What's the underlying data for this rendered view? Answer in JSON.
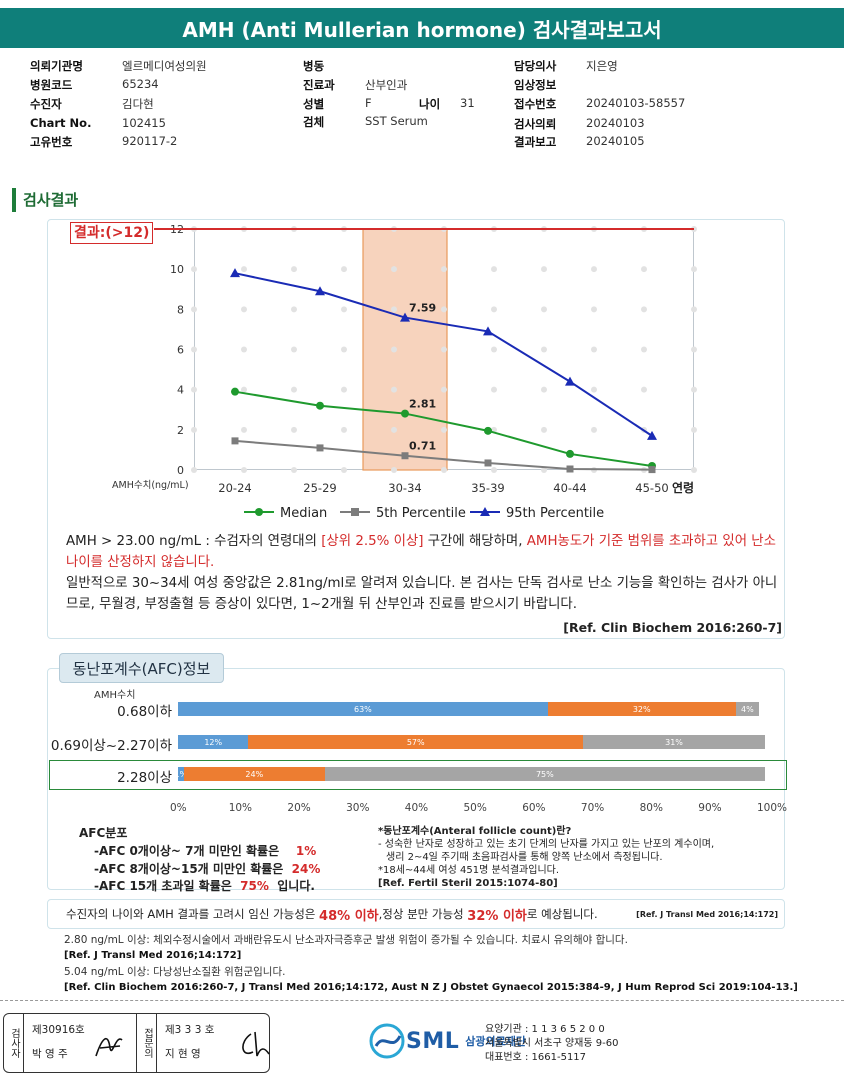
{
  "title": "AMH (Anti Mullerian hormone) 검사결과보고서",
  "info": {
    "col1": [
      {
        "label": "의뢰기관명",
        "value": "엘르메디여성의원"
      },
      {
        "label": "병원코드",
        "value": "65234"
      },
      {
        "label": "수진자",
        "value": "김다현"
      },
      {
        "label": "Chart No.",
        "value": "102415"
      },
      {
        "label": "고유번호",
        "value": "920117-2"
      }
    ],
    "col2": [
      {
        "label": "병동",
        "value": ""
      },
      {
        "label": "진료과",
        "value": "산부인과"
      },
      {
        "label": "성별",
        "value": "F"
      },
      {
        "label": "검체",
        "value": "SST Serum"
      }
    ],
    "age_label": "나이",
    "age_value": "31",
    "col3": [
      {
        "label": "담당의사",
        "value": "지은영"
      },
      {
        "label": "임상정보",
        "value": ""
      },
      {
        "label": "접수번호",
        "value": "20240103-58557"
      },
      {
        "label": "검사의뢰",
        "value": "20240103"
      },
      {
        "label": "결과보고",
        "value": "20240105"
      }
    ]
  },
  "section_title": "검사결과",
  "result_flag": "결과:(>12)",
  "chart_data": {
    "type": "line",
    "categories": [
      "20-24",
      "25-29",
      "30-34",
      "35-39",
      "40-44",
      "45-50"
    ],
    "x_axis_suffix": "연령",
    "ylabel": "AMH수치(ng/mL)",
    "ylim": [
      0,
      12
    ],
    "yticks": [
      0,
      2,
      4,
      6,
      8,
      10,
      12
    ],
    "highlight_category": "30-34",
    "result_line_value": 12,
    "series": [
      {
        "name": "Median",
        "color": "#1f9a2e",
        "marker": "circle",
        "values": [
          3.9,
          3.2,
          2.81,
          1.95,
          0.8,
          0.2
        ]
      },
      {
        "name": "5th Percentile",
        "color": "#7c7c7c",
        "marker": "square",
        "values": [
          1.45,
          1.1,
          0.71,
          0.35,
          0.05,
          0.02
        ]
      },
      {
        "name": "95th Percentile",
        "color": "#1a2bb5",
        "marker": "triangle",
        "values": [
          9.8,
          8.9,
          7.59,
          6.9,
          4.4,
          1.7
        ]
      }
    ],
    "annotations": [
      {
        "category": "30-34",
        "value": 7.59,
        "text": "7.59"
      },
      {
        "category": "30-34",
        "value": 2.81,
        "text": "2.81"
      },
      {
        "category": "30-34",
        "value": 0.71,
        "text": "0.71"
      }
    ]
  },
  "note": {
    "line1_a": "AMH   > 23.00 ng/mL : 수검자의 연령대의 ",
    "line1_red1": "[상위 2.5% 이상]",
    "line1_b": " 구간에 해당하며, ",
    "line1_red2": "AMH농도가 기준 범위를 초과하고 있어 난소나이를 산정하지 않습니다.",
    "line2": "일반적으로 30~34세 여성 중앙값은 2.81ng/ml로 알려져 있습니다. 본 검사는 단독 검사로 난소 기능을 확인하는 검사가 아니므로, 무월경, 부정출혈 등 증상이 있다면, 1~2개월 뒤 산부인과 진료를 받으시기 바랍니다.",
    "ref": "[Ref. Clin Biochem 2016:260-7]"
  },
  "afc": {
    "tab": "동난포계수(AFC)정보",
    "amh_label": "AMH수치",
    "colors": {
      "blue": "#5b9bd5",
      "orange": "#ed7d31",
      "gray": "#a5a5a5"
    },
    "rows": [
      {
        "label": "0.68이하",
        "segments": [
          63,
          32,
          4
        ],
        "texts": [
          "63%",
          "32%",
          "4%"
        ]
      },
      {
        "label": "0.69이상~2.27이하",
        "segments": [
          12,
          57,
          31
        ],
        "texts": [
          "12%",
          "57%",
          "31%"
        ]
      },
      {
        "label": "2.28이상",
        "segments": [
          1,
          24,
          75
        ],
        "texts": [
          "1%",
          "24%",
          "75%"
        ]
      }
    ],
    "axis": [
      "0%",
      "10%",
      "20%",
      "30%",
      "40%",
      "50%",
      "60%",
      "70%",
      "80%",
      "90%",
      "100%"
    ],
    "dist_title": "AFC분포",
    "dist": [
      {
        "text": "-AFC  0개이상~ 7개 미만인 확률은",
        "pct": "1%",
        "tail": ""
      },
      {
        "text": "-AFC  8개이상~15개 미만인 확률은",
        "pct": "24%",
        "tail": ""
      },
      {
        "text": "-AFC  15개 초과일 확률은",
        "pct": "75%",
        "tail": "입니다."
      }
    ],
    "right_lines": [
      "*동난포계수(Anteral follicle count)란?",
      "- 성숙한 난자로 성장하고 있는 초기 단계의 난자를 가지고 있는 난포의 계수이며,",
      "  생리 2~4일 주기때 초음파검사를 통해 양쪽 난소에서 측정됩니다.",
      "*18세~44세 여성 451명 분석결과입니다.",
      "[Ref. Fertil Steril 2015:1074-80]"
    ]
  },
  "pregnancy": {
    "a": "수진자의 나이와 AMH 결과를 고려시 임신 가능성은 ",
    "p1": "48% 이하",
    "b": " ,정상 분만 가능성 ",
    "p2": "32% 이하",
    "c": "로 예상됩니다.",
    "ref": "[Ref. J Transl Med 2016;14:172]"
  },
  "footnotes": [
    {
      "text": "2.80  ng/mL  이상: 체외수정시술에서 과배란유도시 난소과자극증후군 발생 위험이 증가될 수 있습니다. 치료시 유의해야 합니다.",
      "bold": false
    },
    {
      "text": "[Ref. J Transl Med 2016;14:172]",
      "bold": true
    },
    {
      "text": "5.04  ng/mL  이상: 다낭성난소질환 위험군입니다.",
      "bold": false
    },
    {
      "text": "[Ref. Clin Biochem 2016:260-7, J Transl Med 2016;14:172, Aust N Z J Obstet Gynaecol 2015:384-9, J Hum Reprod Sci 2019:104-13.]",
      "bold": true
    }
  ],
  "signature": {
    "label1": "검사자",
    "no1": "제30916호",
    "name1": "박 영 주",
    "label2": "접문의",
    "no2": "제3 3 3 호",
    "name2": "지 현 영"
  },
  "org": {
    "logo": "SML",
    "name": "삼광의료재단",
    "lines": [
      "요양기관 : 1 1 3 6 5 2 0 0",
      "서울특별시 서초구 양재동 9-60",
      "대표번호 : 1661-5117"
    ]
  }
}
